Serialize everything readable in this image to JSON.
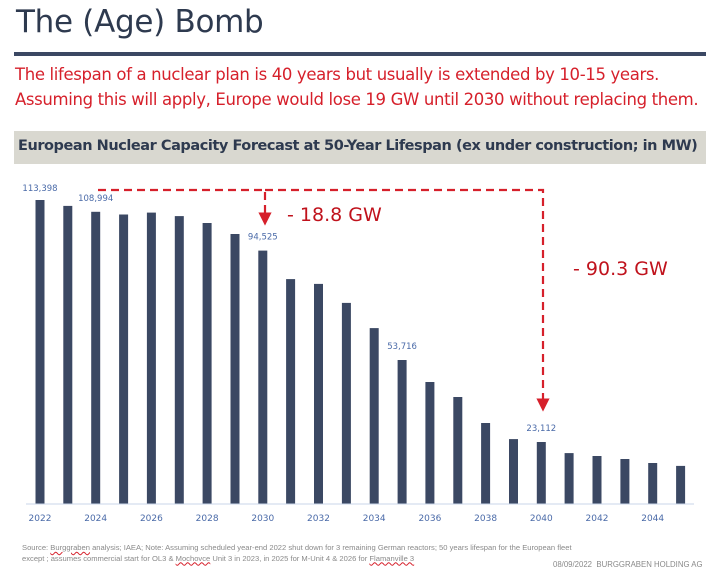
{
  "slide": {
    "title": "The (Age) Bomb",
    "subtitle": "The lifespan of a nuclear plan is 40 years but usually is extended by 10-15 years. Assuming this will apply, Europe would lose 19 GW until 2030 without replacing them."
  },
  "colors": {
    "bar": "#3b4863",
    "title": "#2e3a4f",
    "accent_red": "#d6202b",
    "annotation_red": "#c0121c",
    "data_label": "#4a6aa8",
    "header_bg": "#d9d8d0",
    "axis": "#c9d6ea"
  },
  "chart_data": {
    "type": "bar",
    "title": "European Nuclear Capacity Forecast at 50-Year Lifespan (ex under construction; in MW)",
    "xlabel": "",
    "ylabel": "",
    "ylim": [
      0,
      120000
    ],
    "grid": false,
    "legend": "none",
    "categories": [
      "2022",
      "2023",
      "2024",
      "2025",
      "2026",
      "2027",
      "2028",
      "2029",
      "2030",
      "2031",
      "2032",
      "2033",
      "2034",
      "2035",
      "2036",
      "2037",
      "2038",
      "2039",
      "2040",
      "2041",
      "2042",
      "2043",
      "2044",
      "2045"
    ],
    "values": [
      113398,
      111200,
      108994,
      108000,
      108700,
      107400,
      104800,
      100700,
      94525,
      83900,
      82100,
      75000,
      65600,
      53716,
      45500,
      39900,
      30200,
      24200,
      23112,
      19000,
      17900,
      16800,
      15300,
      14200
    ],
    "tick_labels": [
      "2022",
      "2024",
      "2026",
      "2028",
      "2030",
      "2032",
      "2034",
      "2036",
      "2038",
      "2040",
      "2042",
      "2044"
    ],
    "data_labels": [
      {
        "category": "2022",
        "text": "113,398"
      },
      {
        "category": "2024",
        "text": "108,994"
      },
      {
        "category": "2030",
        "text": "94,525"
      },
      {
        "category": "2035",
        "text": "53,716"
      },
      {
        "category": "2040",
        "text": "23,112"
      }
    ],
    "annotations": [
      {
        "text": "- 18.8 GW",
        "from": "2022",
        "to": "2030"
      },
      {
        "text": "- 90.3 GW",
        "from": "2022",
        "to": "2040"
      }
    ]
  },
  "footer": {
    "source_parts": [
      {
        "text": "Source: ",
        "spell": false
      },
      {
        "text": "Burggraben",
        "spell": true
      },
      {
        "text": " analysis; IAEA; Note: Assuming scheduled year-end 2022 shut down for 3 remaining German reactors; 50 years lifespan for the European fleet except ; assumes commercial start for OL3 & ",
        "spell": false
      },
      {
        "text": "Mochovce",
        "spell": true
      },
      {
        "text": " Unit 3 in 2023, in 2025 for M-Unit 4 & 2026 for ",
        "spell": false
      },
      {
        "text": "Flamanville 3",
        "spell": true
      }
    ],
    "date": "08/09/2022",
    "company": "BURGGRABEN HOLDING AG"
  }
}
